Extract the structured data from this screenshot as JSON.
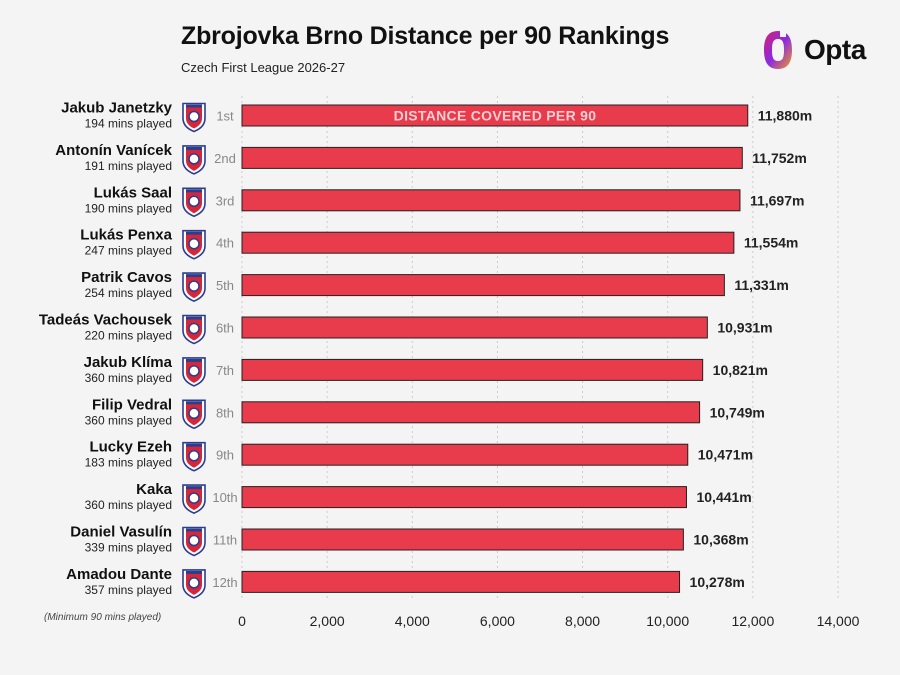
{
  "header": {
    "title": "Zbrojovka Brno Distance per 90 Rankings",
    "subtitle": "Czech First League 2026-27",
    "brand": "Opta"
  },
  "footnote": "(Minimum 90 mins played)",
  "colors": {
    "bar": "#e83b4c",
    "bar_stroke": "#222222",
    "background": "#f4f4f4",
    "grid": "#cccccc",
    "badge_blue": "#2b3d8f",
    "badge_red": "#d6273a"
  },
  "chart_data": {
    "type": "bar",
    "orientation": "horizontal",
    "title": "Zbrojovka Brno Distance per 90 Rankings",
    "subtitle": "Czech First League 2026-27",
    "bar_label": "DISTANCE COVERED PER 90",
    "categories": [
      "Jakub Janetzky",
      "Antonín Vanícek",
      "Lukás Saal",
      "Lukás Penxa",
      "Patrik Cavos",
      "Tadeás Vachousek",
      "Jakub Klíma",
      "Filip Vedral",
      "Lucky Ezeh",
      "Kaka",
      "Daniel Vasulín",
      "Amadou Dante"
    ],
    "minutes": [
      "194 mins played",
      "191 mins played",
      "190 mins played",
      "247 mins played",
      "254 mins played",
      "220 mins played",
      "360 mins played",
      "360 mins played",
      "183 mins played",
      "360 mins played",
      "339 mins played",
      "357 mins played"
    ],
    "ranks": [
      "1st",
      "2nd",
      "3rd",
      "4th",
      "5th",
      "6th",
      "7th",
      "8th",
      "9th",
      "10th",
      "11th",
      "12th"
    ],
    "values": [
      11880,
      11752,
      11697,
      11554,
      11331,
      10931,
      10821,
      10749,
      10471,
      10441,
      10368,
      10278
    ],
    "value_labels": [
      "11,880m",
      "11,752m",
      "11,697m",
      "11,554m",
      "11,331m",
      "10,931m",
      "10,821m",
      "10,749m",
      "10,471m",
      "10,441m",
      "10,368m",
      "10,278m"
    ],
    "xlim": [
      0,
      14000
    ],
    "xticks": [
      0,
      2000,
      4000,
      6000,
      8000,
      10000,
      12000,
      14000
    ],
    "xtick_labels": [
      "0",
      "2,000",
      "4,000",
      "6,000",
      "8,000",
      "10,000",
      "12,000",
      "14,000"
    ],
    "xlabel": "",
    "ylabel": "",
    "grid": true
  }
}
